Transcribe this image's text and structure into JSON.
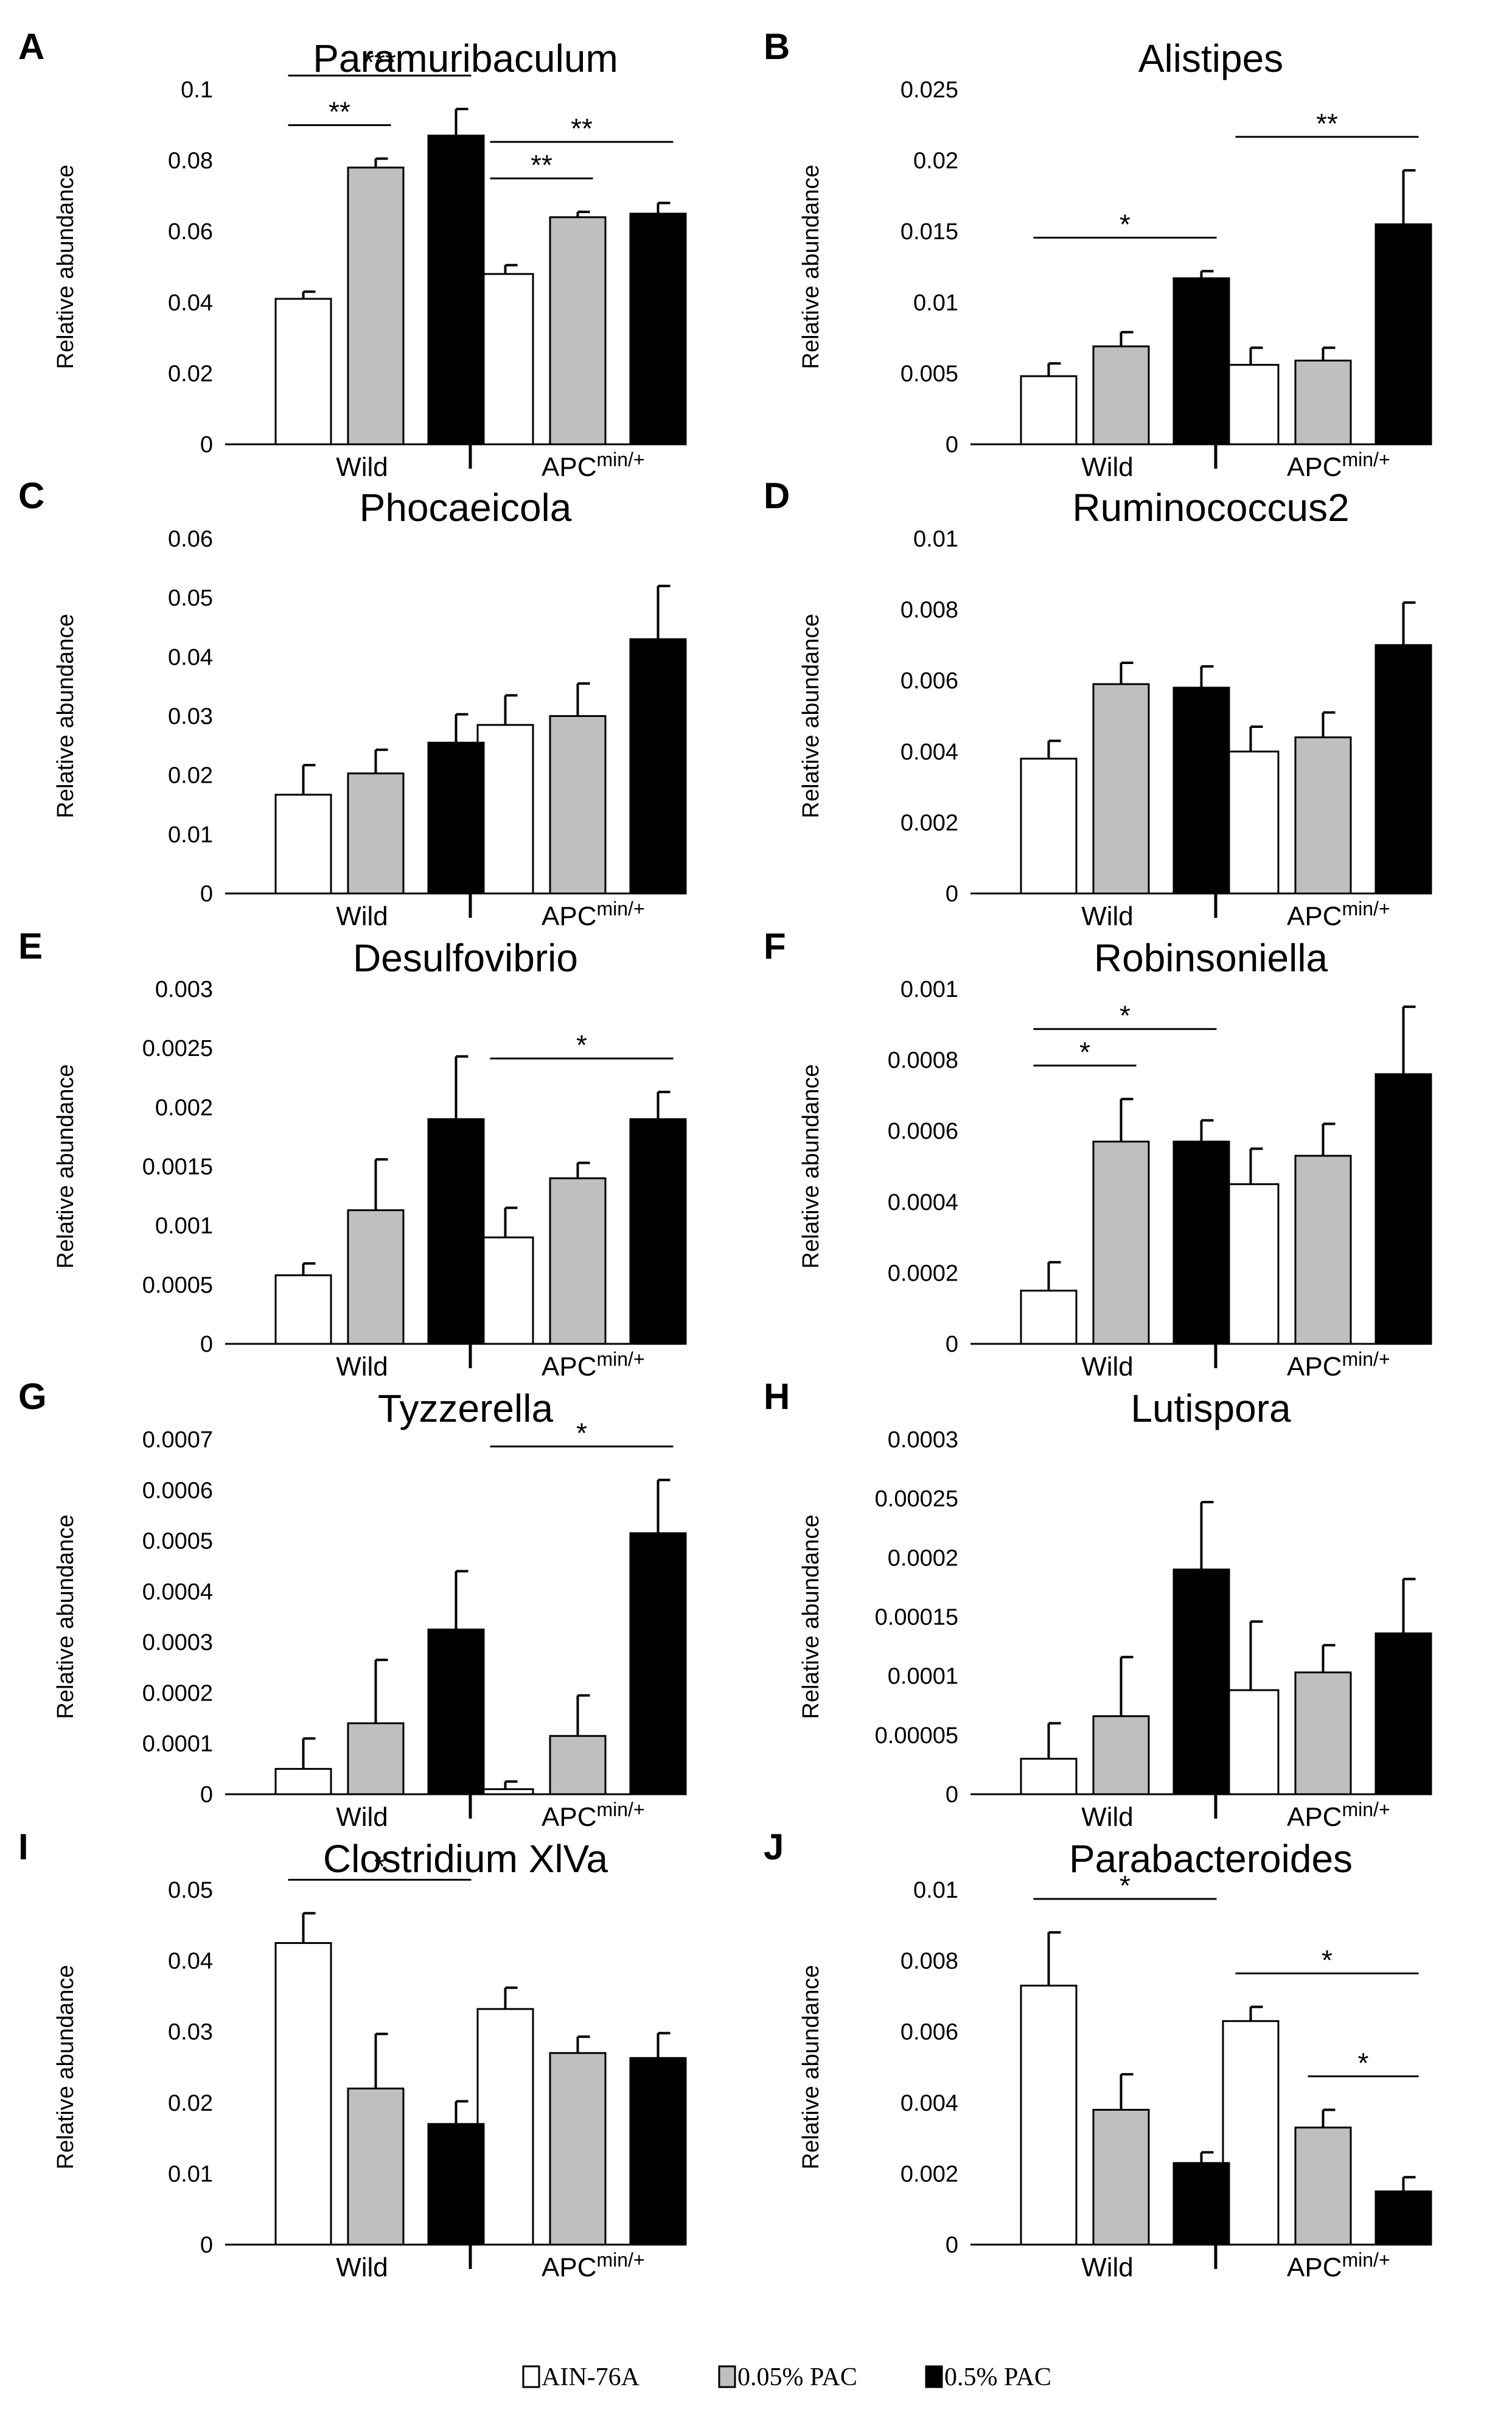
{
  "legend": [
    {
      "label": "AIN-76A",
      "color": "#ffffff"
    },
    {
      "label": "0.05% PAC",
      "color": "#bfbfbf"
    },
    {
      "label": "0.5% PAC",
      "color": "#000000"
    }
  ],
  "group_labels": {
    "wild": "Wild",
    "apc_base": "APC",
    "apc_sup": "min/+"
  },
  "y_axis_label": "Relative abundance",
  "chart_data": [
    {
      "panel": "A",
      "title": "Paramuribaculum",
      "type": "bar",
      "ylabel": "Relative abundance",
      "ylim": [
        0,
        0.1
      ],
      "yticks": [
        "0",
        "0.02",
        "0.04",
        "0.06",
        "0.08",
        "0.1"
      ],
      "series": [
        {
          "name": "AIN-76A",
          "values": [
            0.041,
            0.048
          ],
          "errors": [
            0.002,
            0.0025
          ]
        },
        {
          "name": "0.05% PAC",
          "values": [
            0.078,
            0.064
          ],
          "errors": [
            0.0025,
            0.0015
          ]
        },
        {
          "name": "0.5% PAC",
          "values": [
            0.087,
            0.065
          ],
          "errors": [
            0.0075,
            0.003
          ]
        }
      ],
      "significance": [
        {
          "from": [
            0,
            0
          ],
          "to": [
            0,
            1
          ],
          "label": "**"
        },
        {
          "from": [
            0,
            0
          ],
          "to": [
            0,
            2
          ],
          "label": "***"
        },
        {
          "from": [
            1,
            0
          ],
          "to": [
            1,
            1
          ],
          "label": "**"
        },
        {
          "from": [
            1,
            0
          ],
          "to": [
            1,
            2
          ],
          "label": "**"
        }
      ]
    },
    {
      "panel": "B",
      "title": "Alistipes",
      "type": "bar",
      "ylabel": "Relative abundance",
      "ylim": [
        0,
        0.025
      ],
      "yticks": [
        "0",
        "0.005",
        "0.01",
        "0.015",
        "0.02",
        "0.025"
      ],
      "series": [
        {
          "name": "AIN-76A",
          "values": [
            0.0048,
            0.0056
          ],
          "errors": [
            0.0009,
            0.0012
          ]
        },
        {
          "name": "0.05% PAC",
          "values": [
            0.0069,
            0.0059
          ],
          "errors": [
            0.001,
            0.0009
          ]
        },
        {
          "name": "0.5% PAC",
          "values": [
            0.0117,
            0.0155
          ],
          "errors": [
            0.0005,
            0.0038
          ]
        }
      ],
      "significance": [
        {
          "from": [
            0,
            0
          ],
          "to": [
            0,
            2
          ],
          "label": "*"
        },
        {
          "from": [
            1,
            0
          ],
          "to": [
            1,
            2
          ],
          "label": "**"
        }
      ]
    },
    {
      "panel": "C",
      "title": "Phocaeicola",
      "type": "bar",
      "ylabel": "Relative abundance",
      "ylim": [
        0,
        0.06
      ],
      "yticks": [
        "0",
        "0.01",
        "0.02",
        "0.03",
        "0.04",
        "0.05",
        "0.06"
      ],
      "series": [
        {
          "name": "AIN-76A",
          "values": [
            0.0167,
            0.0285
          ],
          "errors": [
            0.005,
            0.005
          ]
        },
        {
          "name": "0.05% PAC",
          "values": [
            0.0203,
            0.03
          ],
          "errors": [
            0.004,
            0.0055
          ]
        },
        {
          "name": "0.5% PAC",
          "values": [
            0.0255,
            0.043
          ],
          "errors": [
            0.0048,
            0.009
          ]
        }
      ],
      "significance": []
    },
    {
      "panel": "D",
      "title": "Ruminococcus2",
      "type": "bar",
      "ylabel": "Relative abundance",
      "ylim": [
        0,
        0.01
      ],
      "yticks": [
        "0",
        "0.002",
        "0.004",
        "0.006",
        "0.008",
        "0.01"
      ],
      "series": [
        {
          "name": "AIN-76A",
          "values": [
            0.0038,
            0.004
          ],
          "errors": [
            0.0005,
            0.0007
          ]
        },
        {
          "name": "0.05% PAC",
          "values": [
            0.0059,
            0.0044
          ],
          "errors": [
            0.0006,
            0.0007
          ]
        },
        {
          "name": "0.5% PAC",
          "values": [
            0.0058,
            0.007
          ],
          "errors": [
            0.0006,
            0.0012
          ]
        }
      ],
      "significance": []
    },
    {
      "panel": "E",
      "title": "Desulfovibrio",
      "type": "bar",
      "ylabel": "Relative abundance",
      "ylim": [
        0,
        0.003
      ],
      "yticks": [
        "0",
        "0.0005",
        "0.001",
        "0.0015",
        "0.002",
        "0.0025",
        "0.003"
      ],
      "series": [
        {
          "name": "AIN-76A",
          "values": [
            0.00058,
            0.0009
          ],
          "errors": [
            0.0001,
            0.00025
          ]
        },
        {
          "name": "0.05% PAC",
          "values": [
            0.00113,
            0.0014
          ],
          "errors": [
            0.00043,
            0.00013
          ]
        },
        {
          "name": "0.5% PAC",
          "values": [
            0.0019,
            0.0019
          ],
          "errors": [
            0.00053,
            0.00023
          ]
        }
      ],
      "significance": [
        {
          "from": [
            1,
            0
          ],
          "to": [
            1,
            2
          ],
          "label": "*"
        }
      ]
    },
    {
      "panel": "F",
      "title": "Robinsoniella",
      "type": "bar",
      "ylabel": "Relative abundance",
      "ylim": [
        0,
        0.001
      ],
      "yticks": [
        "0",
        "0.0002",
        "0.0004",
        "0.0006",
        "0.0008",
        "0.001"
      ],
      "series": [
        {
          "name": "AIN-76A",
          "values": [
            0.00015,
            0.00045
          ],
          "errors": [
            8e-05,
            0.0001
          ]
        },
        {
          "name": "0.05% PAC",
          "values": [
            0.00057,
            0.00053
          ],
          "errors": [
            0.00012,
            9e-05
          ]
        },
        {
          "name": "0.5% PAC",
          "values": [
            0.00057,
            0.00076
          ],
          "errors": [
            6e-05,
            0.00019
          ]
        }
      ],
      "significance": [
        {
          "from": [
            0,
            0
          ],
          "to": [
            0,
            1
          ],
          "label": "*"
        },
        {
          "from": [
            0,
            0
          ],
          "to": [
            0,
            2
          ],
          "label": "*"
        }
      ]
    },
    {
      "panel": "G",
      "title": "Tyzzerella",
      "type": "bar",
      "ylabel": "Relative abundance",
      "ylim": [
        0,
        0.0007
      ],
      "yticks": [
        "0",
        "0.0001",
        "0.0002",
        "0.0003",
        "0.0004",
        "0.0005",
        "0.0006",
        "0.0007"
      ],
      "series": [
        {
          "name": "AIN-76A",
          "values": [
            5e-05,
            1e-05
          ],
          "errors": [
            6e-05,
            1.5e-05
          ]
        },
        {
          "name": "0.05% PAC",
          "values": [
            0.00014,
            0.000115
          ],
          "errors": [
            0.000125,
            8e-05
          ]
        },
        {
          "name": "0.5% PAC",
          "values": [
            0.000325,
            0.000515
          ],
          "errors": [
            0.000115,
            0.000105
          ]
        }
      ],
      "significance": [
        {
          "from": [
            1,
            0
          ],
          "to": [
            1,
            2
          ],
          "label": "*"
        }
      ]
    },
    {
      "panel": "H",
      "title": "Lutispora",
      "type": "bar",
      "ylabel": "Relative abundance",
      "ylim": [
        0,
        0.0003
      ],
      "yticks": [
        "0",
        "0.00005",
        "0.0001",
        "0.00015",
        "0.0002",
        "0.00025",
        "0.0003"
      ],
      "series": [
        {
          "name": "AIN-76A",
          "values": [
            3e-05,
            8.8e-05
          ],
          "errors": [
            3e-05,
            5.8e-05
          ]
        },
        {
          "name": "0.05% PAC",
          "values": [
            6.6e-05,
            0.000103
          ],
          "errors": [
            5e-05,
            2.3e-05
          ]
        },
        {
          "name": "0.5% PAC",
          "values": [
            0.00019,
            0.000136
          ],
          "errors": [
            5.7e-05,
            4.6e-05
          ]
        }
      ],
      "significance": []
    },
    {
      "panel": "I",
      "title": "Clostridium XlVa",
      "type": "bar",
      "ylabel": "Relative abundance",
      "ylim": [
        0,
        0.05
      ],
      "yticks": [
        "0",
        "0.01",
        "0.02",
        "0.03",
        "0.04",
        "0.05"
      ],
      "series": [
        {
          "name": "AIN-76A",
          "values": [
            0.0425,
            0.0332
          ],
          "errors": [
            0.0042,
            0.003
          ]
        },
        {
          "name": "0.05% PAC",
          "values": [
            0.022,
            0.027
          ],
          "errors": [
            0.0077,
            0.0023
          ]
        },
        {
          "name": "0.5% PAC",
          "values": [
            0.017,
            0.0263
          ],
          "errors": [
            0.0032,
            0.0035
          ]
        }
      ],
      "significance": [
        {
          "from": [
            0,
            0
          ],
          "to": [
            0,
            2
          ],
          "label": "*"
        }
      ]
    },
    {
      "panel": "J",
      "title": "Parabacteroides",
      "type": "bar",
      "ylabel": "Relative abundance",
      "ylim": [
        0,
        0.01
      ],
      "yticks": [
        "0",
        "0.002",
        "0.004",
        "0.006",
        "0.008",
        "0.01"
      ],
      "series": [
        {
          "name": "AIN-76A",
          "values": [
            0.0073,
            0.0063
          ],
          "errors": [
            0.0015,
            0.0004
          ]
        },
        {
          "name": "0.05% PAC",
          "values": [
            0.0038,
            0.0033
          ],
          "errors": [
            0.001,
            0.0005
          ]
        },
        {
          "name": "0.5% PAC",
          "values": [
            0.0023,
            0.0015
          ],
          "errors": [
            0.0003,
            0.0004
          ]
        }
      ],
      "significance": [
        {
          "from": [
            0,
            0
          ],
          "to": [
            0,
            2
          ],
          "label": "*"
        },
        {
          "from": [
            1,
            0
          ],
          "to": [
            1,
            2
          ],
          "label": "*"
        },
        {
          "from": [
            1,
            1
          ],
          "to": [
            1,
            2
          ],
          "label": "*"
        }
      ]
    }
  ]
}
